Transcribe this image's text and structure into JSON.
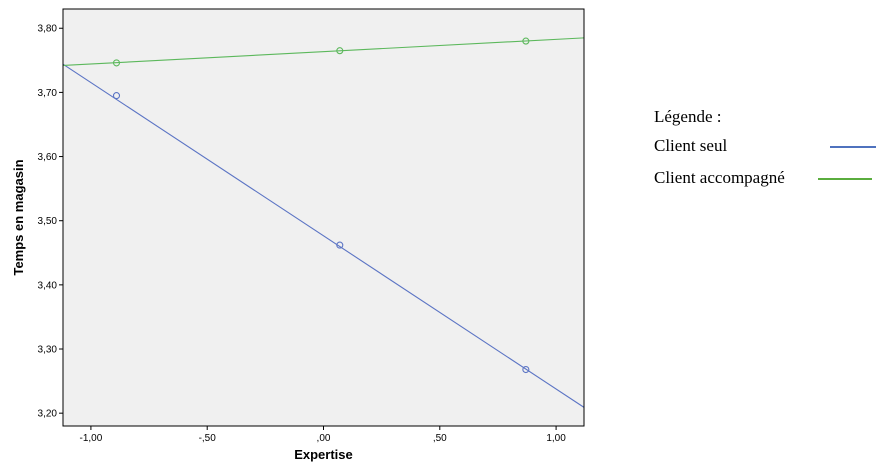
{
  "chart_data": {
    "type": "line",
    "xlabel": "Expertise",
    "ylabel": "Temps en magasin",
    "xlim": [
      -1.12,
      1.12
    ],
    "ylim": [
      3.18,
      3.83
    ],
    "x_ticks": [
      -1.0,
      -0.5,
      0.0,
      0.5,
      1.0
    ],
    "x_tick_labels": [
      "-1,00",
      "-,50",
      ",00",
      ",50",
      "1,00"
    ],
    "y_ticks": [
      3.2,
      3.3,
      3.4,
      3.5,
      3.6,
      3.7,
      3.8
    ],
    "y_tick_labels": [
      "3,20",
      "3,30",
      "3,40",
      "3,50",
      "3,60",
      "3,70",
      "3,80"
    ],
    "grid": false,
    "plot_background": "#f0f0f0",
    "series": [
      {
        "name": "Client seul",
        "color": "#5b74c4",
        "line": {
          "x": [
            -1.12,
            1.12
          ],
          "y": [
            3.744,
            3.209
          ]
        },
        "points": {
          "x": [
            -0.89,
            0.07,
            0.87
          ],
          "y": [
            3.695,
            3.462,
            3.268
          ]
        }
      },
      {
        "name": "Client accompagné",
        "color": "#5cb85c",
        "line": {
          "x": [
            -1.12,
            1.12
          ],
          "y": [
            3.742,
            3.785
          ]
        },
        "points": {
          "x": [
            -0.89,
            0.07,
            0.87
          ],
          "y": [
            3.746,
            3.765,
            3.78
          ]
        }
      }
    ]
  },
  "legend": {
    "title": "Légende :",
    "items": [
      {
        "label": "Client seul",
        "color": "#4f72be"
      },
      {
        "label": "Client accompagné",
        "color": "#5aad3e"
      }
    ]
  }
}
